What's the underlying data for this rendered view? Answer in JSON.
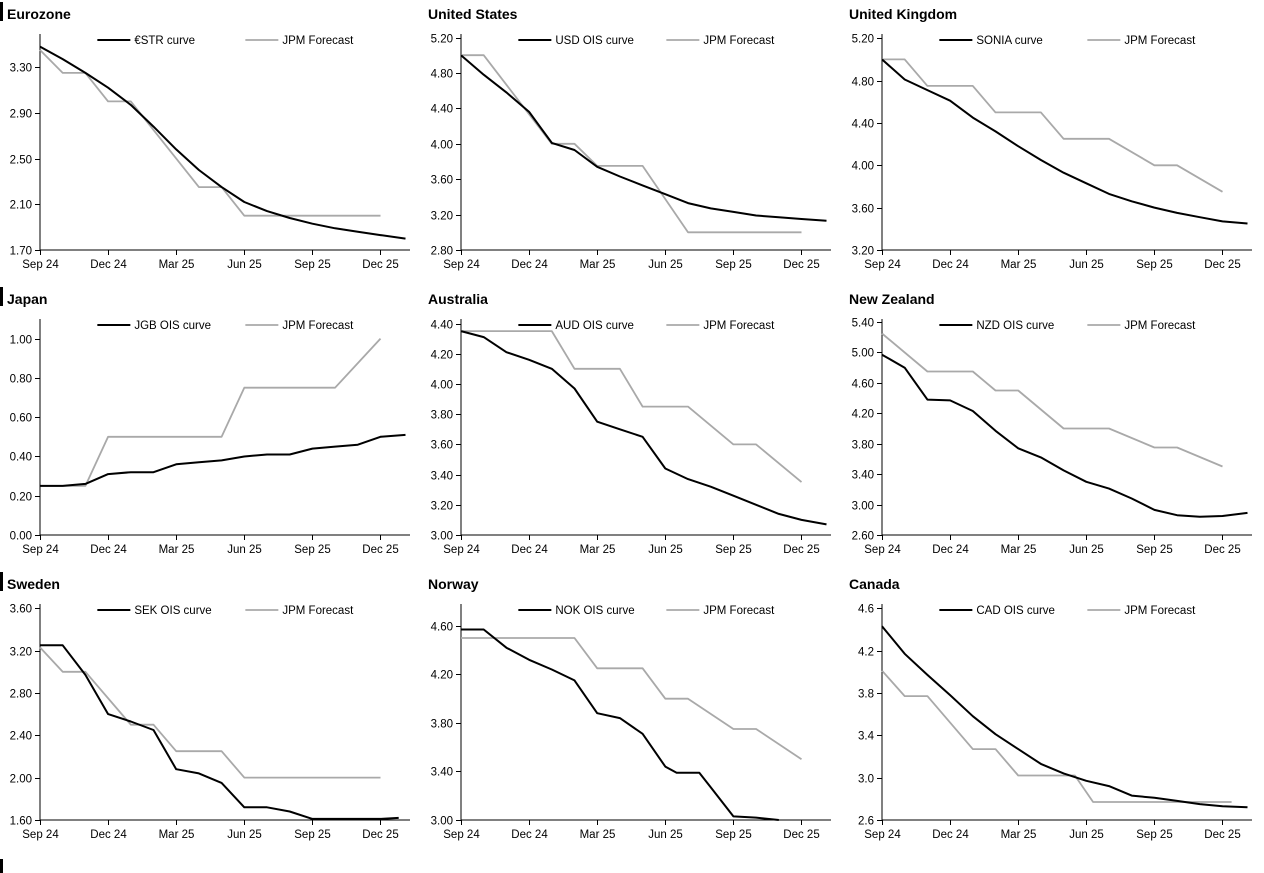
{
  "colors": {
    "market": "#000000",
    "forecast": "#a9a9a9",
    "axis": "#000000",
    "text": "#000000",
    "background": "#ffffff"
  },
  "x_tick_labels": [
    "Sep 24",
    "Dec 24",
    "Mar 25",
    "Jun 25",
    "Sep 25",
    "Dec 25"
  ],
  "x_tick_months": [
    0,
    3,
    6,
    9,
    12,
    15
  ],
  "x_axis_months_max": 16.3,
  "chart_data": [
    {
      "type": "line",
      "title": "Eurozone",
      "ylim": [
        1.7,
        3.59
      ],
      "yticks": [
        "1.70",
        "2.10",
        "2.50",
        "2.90",
        "3.30"
      ],
      "series": [
        {
          "name": "€STR curve",
          "role": "market",
          "x": [
            0,
            1,
            2,
            3,
            4,
            5,
            6,
            7,
            8,
            9,
            10,
            11,
            12,
            13,
            14,
            15,
            16.1
          ],
          "y": [
            3.48,
            3.37,
            3.25,
            3.12,
            2.97,
            2.78,
            2.58,
            2.4,
            2.25,
            2.12,
            2.04,
            1.98,
            1.93,
            1.89,
            1.86,
            1.83,
            1.8
          ]
        },
        {
          "name": "JPM Forecast",
          "role": "forecast",
          "x": [
            0,
            1,
            2,
            3,
            4,
            7,
            8,
            9,
            15
          ],
          "y": [
            3.45,
            3.25,
            3.25,
            3.0,
            3.0,
            2.25,
            2.25,
            2.0,
            2.0
          ]
        }
      ]
    },
    {
      "type": "line",
      "title": "United States",
      "ylim": [
        2.8,
        5.24
      ],
      "yticks": [
        "2.80",
        "3.20",
        "3.60",
        "4.00",
        "4.40",
        "4.80",
        "5.20"
      ],
      "series": [
        {
          "name": "USD OIS curve",
          "role": "market",
          "x": [
            0,
            1,
            2,
            3,
            4,
            5,
            6,
            7,
            8,
            9,
            10,
            11,
            12,
            13,
            14,
            15,
            16.1
          ],
          "y": [
            5.0,
            4.78,
            4.58,
            4.36,
            4.01,
            3.93,
            3.74,
            3.63,
            3.53,
            3.43,
            3.33,
            3.27,
            3.23,
            3.19,
            3.17,
            3.15,
            3.13
          ]
        },
        {
          "name": "JPM Forecast",
          "role": "forecast",
          "x": [
            0,
            1,
            4,
            5,
            6,
            8,
            10,
            15
          ],
          "y": [
            5.0,
            5.0,
            4.0,
            4.0,
            3.75,
            3.75,
            3.0,
            3.0
          ]
        }
      ]
    },
    {
      "type": "line",
      "title": "United Kingdom",
      "ylim": [
        3.2,
        5.24
      ],
      "yticks": [
        "3.20",
        "3.60",
        "4.00",
        "4.40",
        "4.80",
        "5.20"
      ],
      "series": [
        {
          "name": "SONIA curve",
          "role": "market",
          "x": [
            0,
            1,
            2,
            3,
            4,
            5,
            6,
            7,
            8,
            9,
            10,
            11,
            12,
            13,
            14,
            15,
            16.1
          ],
          "y": [
            5.0,
            4.81,
            4.71,
            4.61,
            4.45,
            4.32,
            4.18,
            4.05,
            3.93,
            3.83,
            3.73,
            3.66,
            3.6,
            3.55,
            3.51,
            3.47,
            3.45
          ]
        },
        {
          "name": "JPM Forecast",
          "role": "forecast",
          "x": [
            0,
            1,
            2,
            4,
            5,
            7,
            8,
            10,
            12,
            13,
            15
          ],
          "y": [
            5.0,
            5.0,
            4.75,
            4.75,
            4.5,
            4.5,
            4.25,
            4.25,
            4.0,
            4.0,
            3.75
          ]
        }
      ]
    },
    {
      "type": "line",
      "title": "Japan",
      "ylim": [
        0.0,
        1.1
      ],
      "yticks": [
        "0.00",
        "0.20",
        "0.40",
        "0.60",
        "0.80",
        "1.00"
      ],
      "series": [
        {
          "name": "JGB OIS curve",
          "role": "market",
          "x": [
            0,
            1,
            2,
            3,
            4,
            5,
            6,
            7,
            8,
            9,
            10,
            11,
            12,
            13,
            14,
            15,
            16.1
          ],
          "y": [
            0.25,
            0.25,
            0.26,
            0.31,
            0.32,
            0.32,
            0.36,
            0.37,
            0.38,
            0.4,
            0.41,
            0.41,
            0.44,
            0.45,
            0.46,
            0.5,
            0.51
          ]
        },
        {
          "name": "JPM Forecast",
          "role": "forecast",
          "x": [
            0,
            2,
            3,
            8,
            9,
            13,
            15
          ],
          "y": [
            0.25,
            0.25,
            0.5,
            0.5,
            0.75,
            0.75,
            1.0
          ]
        }
      ]
    },
    {
      "type": "line",
      "title": "Australia",
      "ylim": [
        3.0,
        4.43
      ],
      "yticks": [
        "3.00",
        "3.20",
        "3.40",
        "3.60",
        "3.80",
        "4.00",
        "4.20",
        "4.40"
      ],
      "series": [
        {
          "name": "AUD OIS curve",
          "role": "market",
          "x": [
            0,
            1,
            2,
            3,
            4,
            5,
            6,
            7,
            8,
            9,
            10,
            11,
            12,
            13,
            14,
            15,
            16.1
          ],
          "y": [
            4.35,
            4.31,
            4.21,
            4.16,
            4.1,
            3.97,
            3.75,
            3.7,
            3.65,
            3.44,
            3.37,
            3.32,
            3.26,
            3.2,
            3.14,
            3.1,
            3.07
          ]
        },
        {
          "name": "JPM Forecast",
          "role": "forecast",
          "x": [
            0,
            4,
            5,
            7,
            8,
            10,
            12,
            13,
            15
          ],
          "y": [
            4.35,
            4.35,
            4.1,
            4.1,
            3.85,
            3.85,
            3.6,
            3.6,
            3.35
          ]
        }
      ]
    },
    {
      "type": "line",
      "title": "New Zealand",
      "ylim": [
        2.6,
        5.44
      ],
      "yticks": [
        "2.60",
        "3.00",
        "3.40",
        "3.80",
        "4.20",
        "4.60",
        "5.00",
        "5.40"
      ],
      "series": [
        {
          "name": "NZD OIS curve",
          "role": "market",
          "x": [
            0,
            1,
            2,
            3,
            4,
            5,
            6,
            7,
            8,
            9,
            10,
            11,
            12,
            13,
            14,
            15,
            16.1
          ],
          "y": [
            4.97,
            4.8,
            4.38,
            4.37,
            4.23,
            3.97,
            3.74,
            3.62,
            3.45,
            3.3,
            3.21,
            3.08,
            2.93,
            2.86,
            2.84,
            2.85,
            2.89
          ]
        },
        {
          "name": "JPM Forecast",
          "role": "forecast",
          "x": [
            0,
            2,
            4,
            5,
            6,
            8,
            10,
            12,
            13,
            15
          ],
          "y": [
            5.25,
            4.75,
            4.75,
            4.5,
            4.5,
            4.0,
            4.0,
            3.75,
            3.75,
            3.5
          ]
        }
      ]
    },
    {
      "type": "line",
      "title": "Sweden",
      "ylim": [
        1.6,
        3.64
      ],
      "yticks": [
        "1.60",
        "2.00",
        "2.40",
        "2.80",
        "3.20",
        "3.60"
      ],
      "series": [
        {
          "name": "SEK OIS curve",
          "role": "market",
          "x": [
            0,
            1,
            2,
            3,
            4,
            5,
            6,
            7,
            8,
            9,
            10,
            11,
            12,
            13,
            14,
            15,
            15.8
          ],
          "y": [
            3.25,
            3.25,
            2.97,
            2.6,
            2.53,
            2.45,
            2.08,
            2.04,
            1.95,
            1.72,
            1.72,
            1.68,
            1.61,
            1.61,
            1.61,
            1.61,
            1.62
          ]
        },
        {
          "name": "JPM Forecast",
          "role": "forecast",
          "x": [
            0,
            1,
            2,
            4,
            5,
            6,
            8,
            9,
            15
          ],
          "y": [
            3.23,
            3.0,
            3.0,
            2.5,
            2.5,
            2.25,
            2.25,
            2.0,
            2.0
          ]
        }
      ]
    },
    {
      "type": "line",
      "title": "Norway",
      "ylim": [
        3.0,
        4.78
      ],
      "yticks": [
        "3.00",
        "3.40",
        "3.80",
        "4.20",
        "4.60"
      ],
      "series": [
        {
          "name": "NOK OIS curve",
          "role": "market",
          "x": [
            0,
            1,
            2,
            3,
            4,
            5,
            6,
            7,
            8,
            9,
            9.5,
            10.5,
            11,
            12,
            13,
            14
          ],
          "y": [
            4.57,
            4.57,
            4.42,
            4.32,
            4.24,
            4.15,
            3.88,
            3.84,
            3.71,
            3.44,
            3.39,
            3.39,
            3.27,
            3.03,
            3.02,
            3.0
          ]
        },
        {
          "name": "JPM Forecast",
          "role": "forecast",
          "x": [
            0,
            5,
            6,
            8,
            9,
            10,
            12,
            13,
            15
          ],
          "y": [
            4.5,
            4.5,
            4.25,
            4.25,
            4.0,
            4.0,
            3.75,
            3.75,
            3.5
          ]
        }
      ]
    },
    {
      "type": "line",
      "title": "Canada",
      "ylim": [
        2.6,
        4.64
      ],
      "yticks": [
        "2.6",
        "3.0",
        "3.4",
        "3.8",
        "4.2",
        "4.6"
      ],
      "series": [
        {
          "name": "CAD OIS curve",
          "role": "market",
          "x": [
            0,
            1,
            2,
            3,
            4,
            5,
            6,
            7,
            8,
            9,
            10,
            11,
            12,
            13,
            14,
            15,
            16.1
          ],
          "y": [
            4.43,
            4.17,
            3.97,
            3.78,
            3.58,
            3.41,
            3.27,
            3.13,
            3.04,
            2.97,
            2.92,
            2.83,
            2.81,
            2.78,
            2.75,
            2.73,
            2.72
          ]
        },
        {
          "name": "JPM Forecast",
          "role": "forecast",
          "x": [
            0,
            1,
            2,
            4,
            5,
            6,
            8.5,
            9.3,
            15.4
          ],
          "y": [
            4.01,
            3.77,
            3.77,
            3.27,
            3.27,
            3.02,
            3.02,
            2.77,
            2.77
          ]
        }
      ]
    }
  ]
}
